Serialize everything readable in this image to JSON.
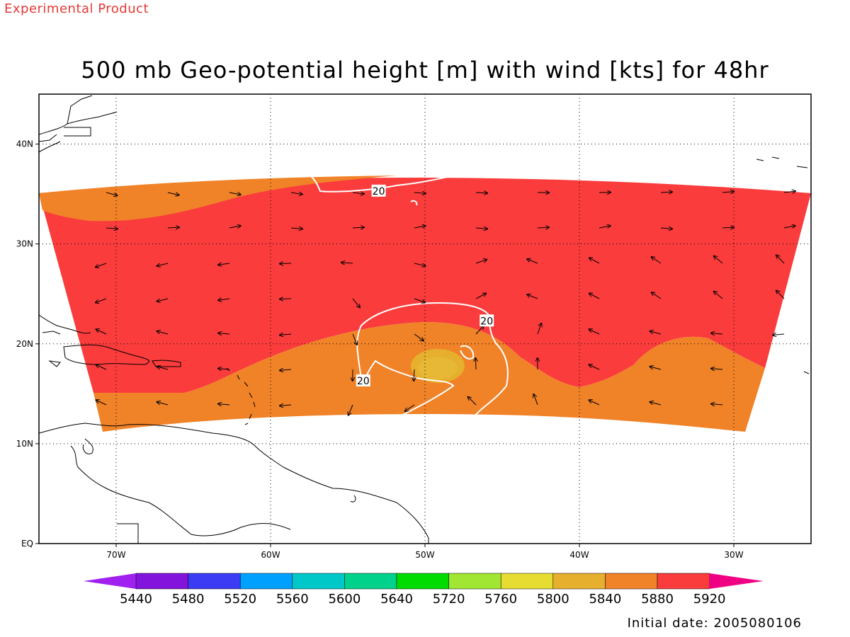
{
  "header": {
    "experimental_label": "Experimental Product",
    "title": "500 mb Geo-potential height [m] with wind [kts] for 48hr"
  },
  "footer": {
    "initial_date": "Initial date: 2005080106"
  },
  "map": {
    "lon_range": [
      -75,
      -25
    ],
    "lat_range": [
      0,
      45
    ],
    "lon_ticks": [
      {
        "value": -70,
        "label": "70W"
      },
      {
        "value": -60,
        "label": "60W"
      },
      {
        "value": -50,
        "label": "50W"
      },
      {
        "value": -40,
        "label": "40W"
      },
      {
        "value": -30,
        "label": "30W"
      }
    ],
    "lat_ticks": [
      {
        "value": 0,
        "label": "EQ"
      },
      {
        "value": 10,
        "label": "10N"
      },
      {
        "value": 20,
        "label": "20N"
      },
      {
        "value": 30,
        "label": "30N"
      },
      {
        "value": 40,
        "label": "40N"
      }
    ],
    "grid": "dotted",
    "contour_labels": [
      {
        "text": "20",
        "lon": -53,
        "lat": 35.3
      },
      {
        "text": "20",
        "lon": -46,
        "lat": 22.3
      },
      {
        "text": "20",
        "lon": -54,
        "lat": 16.3
      }
    ]
  },
  "colorbar": {
    "levels": [
      "5440",
      "5480",
      "5520",
      "5560",
      "5600",
      "5640",
      "5720",
      "5760",
      "5800",
      "5840",
      "5880",
      "5920"
    ],
    "colors": [
      "#a020f0",
      "#8214dc",
      "#3c3cf5",
      "#00a0ff",
      "#00c8c8",
      "#00d28c",
      "#00dc00",
      "#a0e632",
      "#e6dc32",
      "#e6af2d",
      "#f08228",
      "#fa3c3c",
      "#f00082"
    ]
  },
  "colors": {
    "field_5880": "#fa3c3c",
    "field_5840": "#f08228",
    "field_5800": "#e6af2d",
    "contour": "#ffffff",
    "coast": "#000000"
  }
}
